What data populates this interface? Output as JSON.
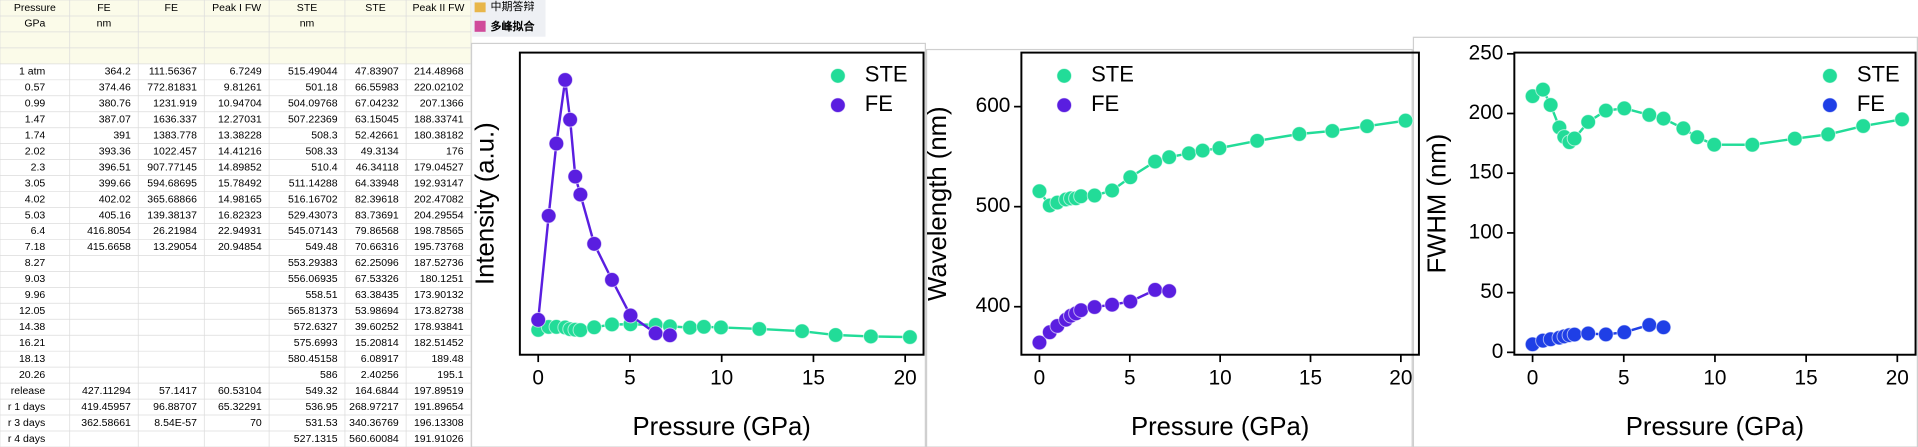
{
  "menu": [
    "中期答辩",
    "多峰拟合"
  ],
  "table": {
    "header": [
      [
        "Pressure",
        "FE",
        "FE",
        "Peak I FW",
        "STE",
        "STE",
        "Peak II FW"
      ],
      [
        "GPa",
        "nm",
        null,
        null,
        "nm",
        null,
        null
      ]
    ],
    "rows": [
      [
        "1 atm",
        "364.2",
        "111.56367",
        "6.7249",
        "515.49044",
        "47.83907",
        "214.48968"
      ],
      [
        "0.57",
        "374.46",
        "772.81831",
        "9.81261",
        "501.18",
        "66.55983",
        "220.02102"
      ],
      [
        "0.99",
        "380.76",
        "1231.919",
        "10.94704",
        "504.09768",
        "67.04232",
        "207.1366"
      ],
      [
        "1.47",
        "387.07",
        "1636.337",
        "12.27031",
        "507.22369",
        "63.15045",
        "188.33741"
      ],
      [
        "1.74",
        "391",
        "1383.778",
        "13.38228",
        "508.3",
        "52.42661",
        "180.38182"
      ],
      [
        "2.02",
        "393.36",
        "1022.457",
        "14.41216",
        "508.33",
        "49.3134",
        "176"
      ],
      [
        "2.3",
        "396.51",
        "907.77145",
        "14.89852",
        "510.4",
        "46.34118",
        "179.04527"
      ],
      [
        "3.05",
        "399.66",
        "594.68695",
        "15.78492",
        "511.14288",
        "64.33948",
        "192.93147"
      ],
      [
        "4.02",
        "402.02",
        "365.68866",
        "14.98165",
        "516.16702",
        "82.39618",
        "202.47082"
      ],
      [
        "5.03",
        "405.16",
        "139.38137",
        "16.82323",
        "529.43073",
        "83.73691",
        "204.29554"
      ],
      [
        "6.4",
        "416.8054",
        "26.21984",
        "22.94931",
        "545.07143",
        "79.86568",
        "198.78565"
      ],
      [
        "7.18",
        "415.6658",
        "13.29054",
        "20.94854",
        "549.48",
        "70.66316",
        "195.73768"
      ],
      [
        "8.27",
        null,
        null,
        null,
        "553.29383",
        "62.25096",
        "187.52736"
      ],
      [
        "9.03",
        null,
        null,
        null,
        "556.06935",
        "67.53326",
        "180.1251"
      ],
      [
        "9.96",
        null,
        null,
        null,
        "558.51",
        "63.38435",
        "173.90132"
      ],
      [
        "12.05",
        null,
        null,
        null,
        "565.81373",
        "53.98694",
        "173.82738"
      ],
      [
        "14.38",
        null,
        null,
        null,
        "572.6327",
        "39.60252",
        "178.93841"
      ],
      [
        "16.21",
        null,
        null,
        null,
        "575.6993",
        "15.20814",
        "182.51452"
      ],
      [
        "18.13",
        null,
        null,
        null,
        "580.45158",
        "6.08917",
        "189.48"
      ],
      [
        "20.26",
        null,
        null,
        null,
        "586",
        "2.40256",
        "195.1"
      ],
      [
        "release",
        "427.11294",
        "57.1417",
        "60.53104",
        "549.32",
        "164.6844",
        "197.89519"
      ],
      [
        "r 1 days",
        "419.45957",
        "96.88707",
        "65.32291",
        "536.95",
        "268.97217",
        "191.89654"
      ],
      [
        "r 3 days",
        "362.58661",
        "8.54E-57",
        "70",
        "531.53",
        "340.36769",
        "196.13308"
      ],
      [
        "r 4 days",
        null,
        null,
        null,
        "527.1315",
        "560.60084",
        "191.91026"
      ]
    ]
  },
  "chart_data": [
    {
      "type": "line",
      "xlabel": "Pressure (GPa)",
      "ylabel": "Intensity (a.u.)",
      "xlim": [
        -1,
        21
      ],
      "xticks": [
        0,
        5,
        10,
        15,
        20
      ],
      "ylim": [
        -110,
        1810
      ],
      "legend": "upper right",
      "series": [
        {
          "name": "STE",
          "color": "#22dc98",
          "x": [
            0,
            0.57,
            0.99,
            1.47,
            1.74,
            2.02,
            2.3,
            3.05,
            4.02,
            5.03,
            6.4,
            7.18,
            8.27,
            9.03,
            9.96,
            12.05,
            14.38,
            16.21,
            18.13,
            20.26
          ],
          "values": [
            47.83907,
            66.55983,
            67.04232,
            63.15045,
            52.42661,
            49.3134,
            46.34118,
            64.33948,
            82.39618,
            83.73691,
            79.86568,
            70.66316,
            62.25096,
            67.53326,
            63.38435,
            53.98694,
            39.60252,
            15.20814,
            6.08917,
            2.40256
          ]
        },
        {
          "name": "FE",
          "color": "#5a1ee0",
          "x": [
            0,
            0.57,
            0.99,
            1.47,
            1.74,
            2.02,
            2.3,
            3.05,
            4.02,
            5.03,
            6.4,
            7.18
          ],
          "values": [
            111.56367,
            772.81831,
            1231.919,
            1636.337,
            1383.778,
            1022.457,
            907.77145,
            594.68695,
            365.68866,
            139.38137,
            26.21984,
            13.29054
          ]
        }
      ]
    },
    {
      "type": "line",
      "xlabel": "Pressure (GPa)",
      "ylabel": "Wavelength (nm)",
      "xlim": [
        -1,
        21
      ],
      "xticks": [
        0,
        5,
        10,
        15,
        20
      ],
      "ylim": [
        352,
        654
      ],
      "yticks": [
        400,
        500,
        600
      ],
      "legend": "upper left",
      "series": [
        {
          "name": "STE",
          "color": "#22dc98",
          "x": [
            0,
            0.57,
            0.99,
            1.47,
            1.74,
            2.02,
            2.3,
            3.05,
            4.02,
            5.03,
            6.4,
            7.18,
            8.27,
            9.03,
            9.96,
            12.05,
            14.38,
            16.21,
            18.13,
            20.26
          ],
          "values": [
            515.49044,
            501.18,
            504.09768,
            507.22369,
            508.3,
            508.33,
            510.4,
            511.14288,
            516.16702,
            529.43073,
            545.07143,
            549.48,
            553.29383,
            556.06935,
            558.51,
            565.81373,
            572.6327,
            575.6993,
            580.45158,
            586
          ]
        },
        {
          "name": "FE",
          "color": "#5a1ee0",
          "x": [
            0,
            0.57,
            0.99,
            1.47,
            1.74,
            2.02,
            2.3,
            3.05,
            4.02,
            5.03,
            6.4,
            7.18
          ],
          "values": [
            364.2,
            374.46,
            380.76,
            387.07,
            391,
            393.36,
            396.51,
            399.66,
            402.02,
            405.16,
            416.8054,
            415.6658
          ]
        }
      ]
    },
    {
      "type": "line",
      "xlabel": "Pressure (GPa)",
      "ylabel": "FWHM (nm)",
      "xlim": [
        -1,
        21
      ],
      "xticks": [
        0,
        5,
        10,
        15,
        20
      ],
      "ylim": [
        -2,
        251
      ],
      "yticks": [
        0,
        50,
        100,
        150,
        200,
        250
      ],
      "legend": "upper right",
      "series": [
        {
          "name": "STE",
          "color": "#22dc98",
          "x": [
            0,
            0.57,
            0.99,
            1.47,
            1.74,
            2.02,
            2.3,
            3.05,
            4.02,
            5.03,
            6.4,
            7.18,
            8.27,
            9.03,
            9.96,
            12.05,
            14.38,
            16.21,
            18.13,
            20.26
          ],
          "values": [
            214.48968,
            220.02102,
            207.1366,
            188.33741,
            180.38182,
            176,
            179.04527,
            192.93147,
            202.47082,
            204.29554,
            198.78565,
            195.73768,
            187.52736,
            180.1251,
            173.90132,
            173.82738,
            178.93841,
            182.51452,
            189.48,
            195.1
          ]
        },
        {
          "name": "FE",
          "color": "#1f3fe6",
          "x": [
            0,
            0.57,
            0.99,
            1.47,
            1.74,
            2.02,
            2.3,
            3.05,
            4.02,
            5.03,
            6.4,
            7.18
          ],
          "values": [
            6.7249,
            9.81261,
            10.94704,
            12.27031,
            13.38228,
            14.41216,
            14.89852,
            15.78492,
            14.98165,
            16.82323,
            22.94931,
            20.94854
          ]
        }
      ]
    }
  ]
}
